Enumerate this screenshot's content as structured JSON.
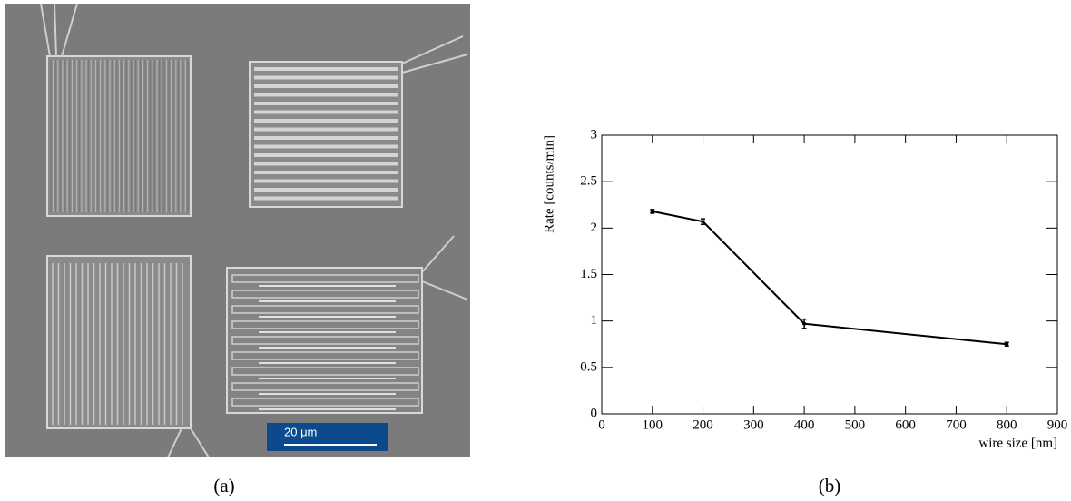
{
  "image": {
    "scale_bar_label": "20 μm",
    "caption": "(a)"
  },
  "chart_data": {
    "type": "line",
    "caption": "(b)",
    "xlabel": "wire size [nm]",
    "ylabel": "Rate [counts/min]",
    "x": [
      100,
      200,
      400,
      800
    ],
    "series": [
      {
        "color": "#000000",
        "values": [
          2.18,
          2.07,
          0.97,
          0.75
        ],
        "errors": [
          0.02,
          0.03,
          0.05,
          0.02
        ]
      }
    ],
    "xlim": [
      0,
      900
    ],
    "xticks": [
      0,
      100,
      200,
      300,
      400,
      500,
      600,
      700,
      800,
      900
    ],
    "ylim": [
      0,
      3
    ],
    "yticks": [
      0,
      0.5,
      1,
      1.5,
      2,
      2.5,
      3
    ]
  }
}
